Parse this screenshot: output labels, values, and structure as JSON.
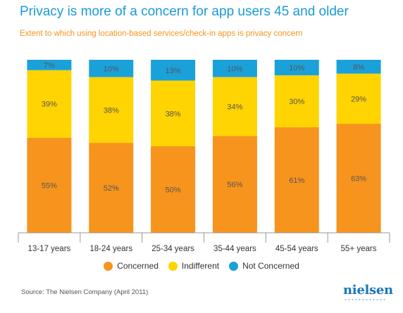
{
  "title": "Privacy is more of a concern for app users 45 and older",
  "subtitle": "Extent to which using location-based services/check-in apps is privacy concern",
  "source": "Source: The Nielsen Company (April 2011)",
  "logo": "nielsen",
  "colors": {
    "title": "#1a9ad6",
    "subtitle": "#f7941d",
    "concerned": "#f7941d",
    "indifferent": "#ffd400",
    "not_concerned": "#1ba1d9"
  },
  "chart_data": {
    "type": "bar",
    "stacked": true,
    "percent_stacked": true,
    "categories": [
      "13-17 years",
      "18-24 years",
      "25-34 years",
      "35-44 years",
      "45-54 years",
      "55+ years"
    ],
    "series": [
      {
        "name": "Concerned",
        "color": "#f7941d",
        "values": [
          55,
          52,
          50,
          56,
          61,
          63
        ]
      },
      {
        "name": "Indifferent",
        "color": "#ffd400",
        "values": [
          39,
          38,
          38,
          34,
          30,
          29
        ]
      },
      {
        "name": "Not Concerned",
        "color": "#1ba1d9",
        "values": [
          7,
          10,
          13,
          10,
          10,
          8
        ]
      }
    ],
    "value_suffix": "%",
    "ylim": [
      0,
      100
    ],
    "grid": false,
    "legend_position": "bottom-center",
    "xlabel": "",
    "ylabel": ""
  }
}
